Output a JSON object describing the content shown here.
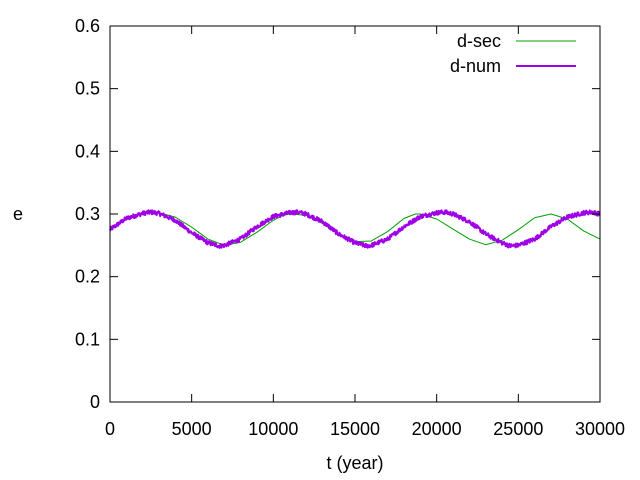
{
  "chart_data": {
    "type": "line",
    "title": "",
    "xlabel": "t (year)",
    "ylabel": "e",
    "xlim": [
      0,
      30000
    ],
    "ylim": [
      0,
      0.6
    ],
    "xticks": [
      0,
      5000,
      10000,
      15000,
      20000,
      25000,
      30000
    ],
    "yticks": [
      0,
      0.1,
      0.2,
      0.3,
      0.4,
      0.5,
      0.6
    ],
    "xtick_labels": [
      "0",
      "5000",
      "10000",
      "15000",
      "20000",
      "25000",
      "30000"
    ],
    "ytick_labels": [
      "0",
      "0.1",
      "0.2",
      "0.3",
      "0.4",
      "0.5",
      "0.6"
    ],
    "grid": false,
    "legend_position": "top-right",
    "series": [
      {
        "name": "d-sec",
        "color": "#00a000",
        "x": [
          0,
          1000,
          2000,
          2500,
          3000,
          4000,
          5000,
          6000,
          7000,
          8000,
          9000,
          10000,
          10500,
          11000,
          12000,
          13000,
          14000,
          15000,
          16000,
          17000,
          18000,
          18700,
          19000,
          20000,
          21000,
          22000,
          23000,
          24000,
          25000,
          26000,
          27000,
          28000,
          29000,
          30000
        ],
        "y": [
          0.275,
          0.294,
          0.302,
          0.303,
          0.302,
          0.295,
          0.279,
          0.26,
          0.25,
          0.255,
          0.271,
          0.29,
          0.297,
          0.3,
          0.298,
          0.285,
          0.268,
          0.256,
          0.257,
          0.272,
          0.293,
          0.3,
          0.3,
          0.292,
          0.276,
          0.26,
          0.251,
          0.258,
          0.275,
          0.294,
          0.3,
          0.292,
          0.273,
          0.26
        ]
      },
      {
        "name": "d-num",
        "color": "#a000e8",
        "x": [
          0,
          1000,
          2000,
          2500,
          3000,
          4000,
          5000,
          6000,
          6700,
          7000,
          8000,
          9000,
          10000,
          11000,
          11500,
          12000,
          13000,
          14000,
          15000,
          15700,
          16000,
          17000,
          18000,
          19000,
          20000,
          20500,
          21000,
          22000,
          23000,
          24000,
          24500,
          25000,
          26000,
          27000,
          28000,
          29000,
          29500,
          30000
        ],
        "y": [
          0.275,
          0.293,
          0.301,
          0.303,
          0.301,
          0.29,
          0.27,
          0.254,
          0.249,
          0.25,
          0.26,
          0.28,
          0.296,
          0.302,
          0.303,
          0.3,
          0.288,
          0.268,
          0.254,
          0.249,
          0.25,
          0.26,
          0.28,
          0.296,
          0.302,
          0.303,
          0.3,
          0.288,
          0.268,
          0.254,
          0.249,
          0.25,
          0.26,
          0.28,
          0.295,
          0.302,
          0.303,
          0.3
        ]
      }
    ]
  }
}
